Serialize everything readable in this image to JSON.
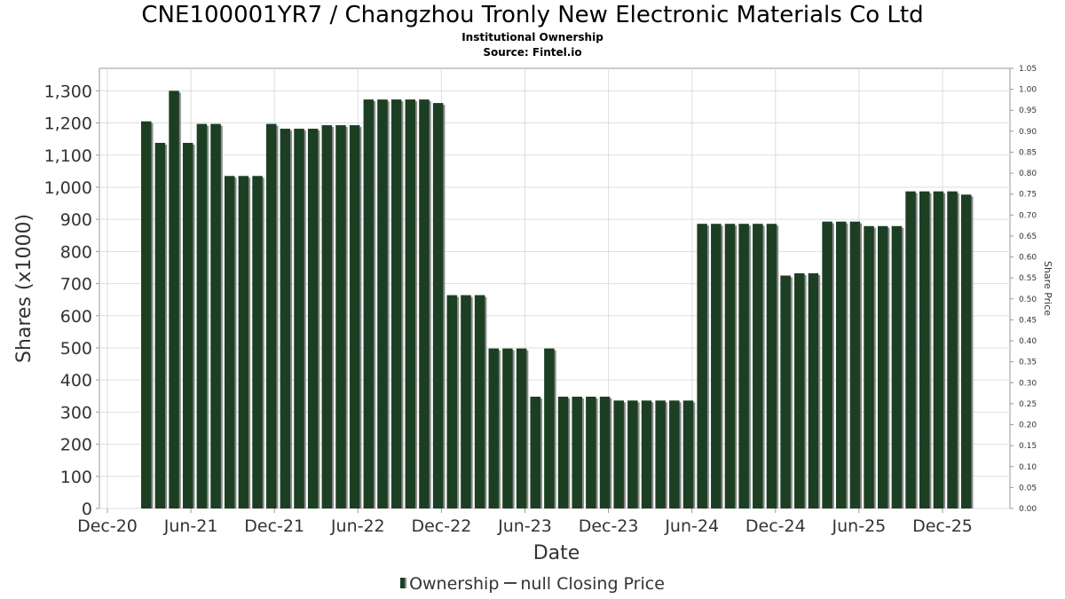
{
  "header": {
    "title": "CNE100001YR7 / Changzhou Tronly New Electronic Materials Co Ltd",
    "subtitle": "Institutional Ownership",
    "source": "Source: Fintel.io"
  },
  "legend": {
    "ownership_label": "Ownership",
    "price_label": "null Closing Price"
  },
  "colors": {
    "bar": "#1c3f23",
    "bar_shadow": "#8a8a8a",
    "grid": "#dddddd",
    "axis": "#999999"
  },
  "chart_data": {
    "type": "bar",
    "xlabel": "Date",
    "ylabel": "Shares (x1000)",
    "y2label": "Share Price",
    "ylim": [
      0,
      1370
    ],
    "y2lim": [
      0,
      1.05
    ],
    "y_ticks": [
      0,
      100,
      200,
      300,
      400,
      500,
      600,
      700,
      800,
      900,
      1000,
      1100,
      1200,
      1300
    ],
    "y_tick_labels": [
      "0",
      "100",
      "200",
      "300",
      "400",
      "500",
      "600",
      "700",
      "800",
      "900",
      "1,000",
      "1,100",
      "1,200",
      "1,300"
    ],
    "y2_ticks": [
      "0.00",
      "0.05",
      "0.10",
      "0.15",
      "0.20",
      "0.25",
      "0.30",
      "0.35",
      "0.40",
      "0.45",
      "0.50",
      "0.55",
      "0.60",
      "0.65",
      "0.70",
      "0.75",
      "0.80",
      "0.85",
      "0.90",
      "0.95",
      "1.00",
      "1.05"
    ],
    "x_ticks": [
      "Dec-20",
      "Jun-21",
      "Dec-21",
      "Jun-22",
      "Dec-22",
      "Jun-23",
      "Dec-23",
      "Jun-24",
      "Dec-24",
      "Jun-25",
      "Dec-25"
    ],
    "grid": true,
    "legend_position": "bottom",
    "series": [
      {
        "name": "Ownership",
        "values": [
          1205,
          1138,
          1300,
          1138,
          1197,
          1197,
          1035,
          1035,
          1035,
          1197,
          1182,
          1182,
          1182,
          1193,
          1193,
          1193,
          1273,
          1273,
          1273,
          1273,
          1273,
          1262,
          664,
          664,
          664,
          498,
          498,
          498,
          348,
          498,
          348,
          348,
          348,
          348,
          336,
          336,
          336,
          336,
          336,
          336,
          886,
          886,
          886,
          886,
          886,
          886,
          725,
          732,
          732,
          893,
          893,
          893,
          879,
          879,
          879,
          987,
          987,
          987,
          987,
          977
        ]
      }
    ]
  }
}
